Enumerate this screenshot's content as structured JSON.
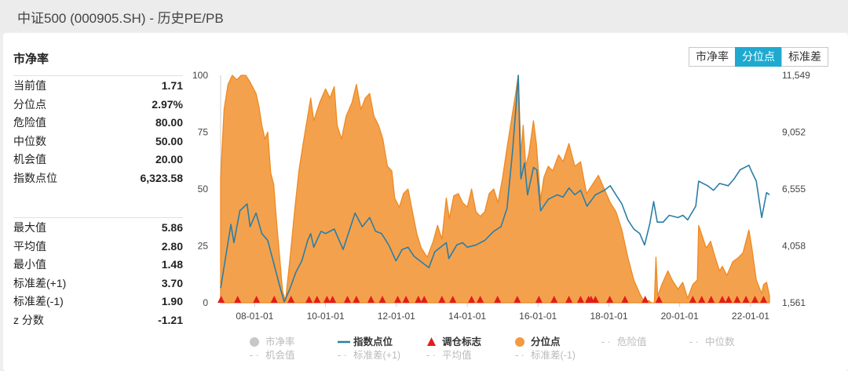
{
  "window_title": "中证500 (000905.SH) - 历史PE/PB",
  "card_title": "市净率",
  "buttons": [
    {
      "label": "市净率",
      "active": false
    },
    {
      "label": "分位点",
      "active": true
    },
    {
      "label": "标准差",
      "active": false
    }
  ],
  "stats_top": [
    {
      "label": "当前值",
      "value": "1.71"
    },
    {
      "label": "分位点",
      "value": "2.97%"
    },
    {
      "label": "危险值",
      "value": "80.00"
    },
    {
      "label": "中位数",
      "value": "50.00"
    },
    {
      "label": "机会值",
      "value": "20.00"
    },
    {
      "label": "指数点位",
      "value": "6,323.58"
    }
  ],
  "stats_bottom": [
    {
      "label": "最大值",
      "value": "5.86"
    },
    {
      "label": "平均值",
      "value": "2.80"
    },
    {
      "label": "最小值",
      "value": "1.48"
    },
    {
      "label": "标准差(+1)",
      "value": "3.70"
    },
    {
      "label": "标准差(-1)",
      "value": "1.90"
    },
    {
      "label": "z 分数",
      "value": "-1.21"
    }
  ],
  "colors": {
    "percentile_fill": "#f39a3f",
    "percentile_line": "#ee8a22",
    "index_line": "#2b7ea5",
    "signal": "#e31c1c",
    "muted": "#c8c8c8"
  },
  "chart_data": {
    "type": "area",
    "left_axis": {
      "ticks": [
        "0",
        "25",
        "50",
        "75",
        "100"
      ],
      "ylim": [
        0,
        100
      ]
    },
    "right_axis": {
      "ticks": [
        "1,561",
        "4,058",
        "6,555",
        "9,052",
        "11,549"
      ],
      "ylim": [
        1561,
        11549
      ]
    },
    "x_ticks": [
      "08-01-01",
      "10-01-01",
      "12-01-01",
      "14-01-01",
      "16-01-01",
      "18-01-01",
      "20-01-01",
      "22-01-01"
    ],
    "x_range": [
      "2007-01-15",
      "2022-07-15"
    ],
    "series": [
      {
        "name": "分位点",
        "axis": "left",
        "points": [
          [
            "2007-01-15",
            55
          ],
          [
            "2007-02-20",
            85
          ],
          [
            "2007-04-01",
            96
          ],
          [
            "2007-05-15",
            100
          ],
          [
            "2007-07-01",
            98
          ],
          [
            "2007-08-15",
            100
          ],
          [
            "2007-10-01",
            100
          ],
          [
            "2007-11-15",
            97
          ],
          [
            "2008-01-15",
            92
          ],
          [
            "2008-02-15",
            86
          ],
          [
            "2008-03-15",
            78
          ],
          [
            "2008-04-15",
            72
          ],
          [
            "2008-05-15",
            75
          ],
          [
            "2008-06-15",
            57
          ],
          [
            "2008-07-15",
            52
          ],
          [
            "2008-08-15",
            35
          ],
          [
            "2008-09-15",
            20
          ],
          [
            "2008-10-15",
            5
          ],
          [
            "2008-11-15",
            1
          ],
          [
            "2009-01-01",
            20
          ],
          [
            "2009-02-15",
            40
          ],
          [
            "2009-04-01",
            58
          ],
          [
            "2009-05-15",
            70
          ],
          [
            "2009-07-01",
            82
          ],
          [
            "2009-08-01",
            90
          ],
          [
            "2009-09-01",
            80
          ],
          [
            "2009-11-01",
            88
          ],
          [
            "2010-01-01",
            94
          ],
          [
            "2010-02-15",
            90
          ],
          [
            "2010-04-01",
            95
          ],
          [
            "2010-05-01",
            78
          ],
          [
            "2010-06-15",
            72
          ],
          [
            "2010-08-01",
            82
          ],
          [
            "2010-10-01",
            88
          ],
          [
            "2010-11-15",
            96
          ],
          [
            "2011-01-01",
            85
          ],
          [
            "2011-02-15",
            90
          ],
          [
            "2011-04-01",
            92
          ],
          [
            "2011-05-15",
            82
          ],
          [
            "2011-07-01",
            78
          ],
          [
            "2011-08-15",
            72
          ],
          [
            "2011-10-01",
            60
          ],
          [
            "2011-11-15",
            58
          ],
          [
            "2011-12-15",
            46
          ],
          [
            "2012-02-01",
            42
          ],
          [
            "2012-03-15",
            48
          ],
          [
            "2012-05-01",
            50
          ],
          [
            "2012-06-15",
            40
          ],
          [
            "2012-08-01",
            30
          ],
          [
            "2012-09-15",
            24
          ],
          [
            "2012-11-15",
            20
          ],
          [
            "2013-01-15",
            27
          ],
          [
            "2013-03-01",
            34
          ],
          [
            "2013-04-15",
            28
          ],
          [
            "2013-05-30",
            46
          ],
          [
            "2013-07-01",
            37
          ],
          [
            "2013-08-15",
            47
          ],
          [
            "2013-10-01",
            48
          ],
          [
            "2013-11-15",
            44
          ],
          [
            "2014-01-01",
            42
          ],
          [
            "2014-02-15",
            50
          ],
          [
            "2014-04-01",
            40
          ],
          [
            "2014-05-15",
            38
          ],
          [
            "2014-07-01",
            40
          ],
          [
            "2014-08-15",
            48
          ],
          [
            "2014-10-01",
            50
          ],
          [
            "2014-11-15",
            44
          ],
          [
            "2015-01-01",
            55
          ],
          [
            "2015-02-15",
            68
          ],
          [
            "2015-04-01",
            80
          ],
          [
            "2015-05-15",
            92
          ],
          [
            "2015-06-12",
            100
          ],
          [
            "2015-07-08",
            65
          ],
          [
            "2015-08-01",
            78
          ],
          [
            "2015-08-28",
            60
          ],
          [
            "2015-10-01",
            66
          ],
          [
            "2015-11-15",
            80
          ],
          [
            "2015-12-15",
            70
          ],
          [
            "2016-01-28",
            45
          ],
          [
            "2016-03-01",
            55
          ],
          [
            "2016-04-15",
            60
          ],
          [
            "2016-06-01",
            58
          ],
          [
            "2016-08-01",
            65
          ],
          [
            "2016-09-15",
            62
          ],
          [
            "2016-11-15",
            70
          ],
          [
            "2017-01-15",
            60
          ],
          [
            "2017-03-15",
            62
          ],
          [
            "2017-05-15",
            48
          ],
          [
            "2017-07-15",
            52
          ],
          [
            "2017-09-15",
            56
          ],
          [
            "2017-11-15",
            50
          ],
          [
            "2018-01-15",
            44
          ],
          [
            "2018-03-15",
            40
          ],
          [
            "2018-05-15",
            32
          ],
          [
            "2018-07-15",
            20
          ],
          [
            "2018-09-15",
            10
          ],
          [
            "2018-11-15",
            4
          ],
          [
            "2019-01-04",
            0
          ],
          [
            "2019-02-15",
            1
          ],
          [
            "2019-03-15",
            0
          ],
          [
            "2019-04-15",
            0
          ],
          [
            "2019-05-01",
            20
          ],
          [
            "2019-05-20",
            3
          ],
          [
            "2019-07-01",
            8
          ],
          [
            "2019-09-01",
            14
          ],
          [
            "2019-10-15",
            10
          ],
          [
            "2019-12-15",
            6
          ],
          [
            "2020-02-01",
            9
          ],
          [
            "2020-03-23",
            2
          ],
          [
            "2020-05-15",
            8
          ],
          [
            "2020-07-01",
            10
          ],
          [
            "2020-07-15",
            34
          ],
          [
            "2020-08-15",
            30
          ],
          [
            "2020-10-01",
            24
          ],
          [
            "2020-11-15",
            27
          ],
          [
            "2021-01-01",
            20
          ],
          [
            "2021-02-15",
            14
          ],
          [
            "2021-03-15",
            16
          ],
          [
            "2021-05-01",
            12
          ],
          [
            "2021-07-01",
            18
          ],
          [
            "2021-09-01",
            20
          ],
          [
            "2021-10-15",
            22
          ],
          [
            "2021-12-15",
            32
          ],
          [
            "2022-01-15",
            24
          ],
          [
            "2022-03-01",
            10
          ],
          [
            "2022-04-26",
            4
          ],
          [
            "2022-05-15",
            8
          ],
          [
            "2022-06-15",
            9
          ],
          [
            "2022-07-15",
            3
          ]
        ]
      },
      {
        "name": "指数点位",
        "axis": "right",
        "points": [
          [
            "2007-01-15",
            2200
          ],
          [
            "2007-03-01",
            3400
          ],
          [
            "2007-05-01",
            5000
          ],
          [
            "2007-06-01",
            4200
          ],
          [
            "2007-08-01",
            5600
          ],
          [
            "2007-10-15",
            5900
          ],
          [
            "2007-11-15",
            4900
          ],
          [
            "2008-01-15",
            5500
          ],
          [
            "2008-03-15",
            4600
          ],
          [
            "2008-05-15",
            4300
          ],
          [
            "2008-07-15",
            3300
          ],
          [
            "2008-09-15",
            2300
          ],
          [
            "2008-11-01",
            1600
          ],
          [
            "2009-01-01",
            2200
          ],
          [
            "2009-03-01",
            2900
          ],
          [
            "2009-05-01",
            3400
          ],
          [
            "2009-07-01",
            4300
          ],
          [
            "2009-08-01",
            4600
          ],
          [
            "2009-09-01",
            4000
          ],
          [
            "2009-11-15",
            4700
          ],
          [
            "2010-01-01",
            4600
          ],
          [
            "2010-04-01",
            4800
          ],
          [
            "2010-07-01",
            3900
          ],
          [
            "2010-09-01",
            4700
          ],
          [
            "2010-11-01",
            5500
          ],
          [
            "2011-01-15",
            4900
          ],
          [
            "2011-04-01",
            5300
          ],
          [
            "2011-06-01",
            4700
          ],
          [
            "2011-08-01",
            4600
          ],
          [
            "2011-10-15",
            4100
          ],
          [
            "2011-12-28",
            3400
          ],
          [
            "2012-03-01",
            3900
          ],
          [
            "2012-05-01",
            4000
          ],
          [
            "2012-07-01",
            3600
          ],
          [
            "2012-09-01",
            3400
          ],
          [
            "2012-12-01",
            3100
          ],
          [
            "2013-02-01",
            3800
          ],
          [
            "2013-05-30",
            4200
          ],
          [
            "2013-06-25",
            3500
          ],
          [
            "2013-09-15",
            4100
          ],
          [
            "2013-11-15",
            4200
          ],
          [
            "2014-01-01",
            4000
          ],
          [
            "2014-04-01",
            4100
          ],
          [
            "2014-07-01",
            4300
          ],
          [
            "2014-10-01",
            4700
          ],
          [
            "2014-12-15",
            4900
          ],
          [
            "2015-02-15",
            5700
          ],
          [
            "2015-04-15",
            8300
          ],
          [
            "2015-06-12",
            11549
          ],
          [
            "2015-07-08",
            7000
          ],
          [
            "2015-08-15",
            7700
          ],
          [
            "2015-09-15",
            6300
          ],
          [
            "2015-11-15",
            7500
          ],
          [
            "2015-12-20",
            7400
          ],
          [
            "2016-01-28",
            5600
          ],
          [
            "2016-04-15",
            6100
          ],
          [
            "2016-07-15",
            6300
          ],
          [
            "2016-09-15",
            6200
          ],
          [
            "2016-11-15",
            6600
          ],
          [
            "2017-01-15",
            6300
          ],
          [
            "2017-03-15",
            6500
          ],
          [
            "2017-05-20",
            5800
          ],
          [
            "2017-08-15",
            6300
          ],
          [
            "2017-11-15",
            6500
          ],
          [
            "2018-01-15",
            6700
          ],
          [
            "2018-03-15",
            6300
          ],
          [
            "2018-05-15",
            5900
          ],
          [
            "2018-07-15",
            5200
          ],
          [
            "2018-09-15",
            4800
          ],
          [
            "2018-11-15",
            4600
          ],
          [
            "2019-01-04",
            4100
          ],
          [
            "2019-02-25",
            5000
          ],
          [
            "2019-04-08",
            6000
          ],
          [
            "2019-05-15",
            5100
          ],
          [
            "2019-07-15",
            5100
          ],
          [
            "2019-09-15",
            5400
          ],
          [
            "2019-12-15",
            5300
          ],
          [
            "2020-02-03",
            5400
          ],
          [
            "2020-03-23",
            5200
          ],
          [
            "2020-06-15",
            5800
          ],
          [
            "2020-07-15",
            6900
          ],
          [
            "2020-10-15",
            6700
          ],
          [
            "2020-12-15",
            6500
          ],
          [
            "2021-02-15",
            6800
          ],
          [
            "2021-05-15",
            6700
          ],
          [
            "2021-07-15",
            7000
          ],
          [
            "2021-09-15",
            7400
          ],
          [
            "2021-12-15",
            7600
          ],
          [
            "2022-01-15",
            7300
          ],
          [
            "2022-03-01",
            6900
          ],
          [
            "2022-04-26",
            5300
          ],
          [
            "2022-06-15",
            6400
          ],
          [
            "2022-07-15",
            6300
          ]
        ]
      }
    ],
    "signals": {
      "name": "调仓标志",
      "y": 0,
      "dates": [
        "2007-01-20",
        "2007-07-10",
        "2008-01-20",
        "2008-07-20",
        "2009-01-10",
        "2009-07-15",
        "2009-10-05",
        "2010-01-15",
        "2010-03-15",
        "2010-08-15",
        "2010-11-15",
        "2011-04-15",
        "2011-08-10",
        "2012-01-15",
        "2012-04-10",
        "2012-08-15",
        "2012-10-15",
        "2013-04-15",
        "2013-08-05",
        "2014-02-15",
        "2014-05-15",
        "2014-11-10",
        "2015-06-01",
        "2016-01-10",
        "2016-06-15",
        "2016-11-15",
        "2017-03-15",
        "2017-06-05",
        "2017-07-01",
        "2017-08-15",
        "2018-01-10",
        "2018-06-15",
        "2019-01-10",
        "2019-06-01",
        "2020-05-15",
        "2020-08-15",
        "2020-11-20",
        "2021-03-15",
        "2021-05-20",
        "2021-08-15",
        "2021-11-15",
        "2022-02-15",
        "2022-05-15"
      ]
    },
    "legend": {
      "row1": [
        {
          "label": "市净率",
          "symbol": "circle",
          "color": "#c8c8c8",
          "active": false
        },
        {
          "label": "指数点位",
          "symbol": "line",
          "color": "#2b7ea5",
          "active": true
        },
        {
          "label": "调仓标志",
          "symbol": "triangle",
          "color": "#e31c1c",
          "active": true
        },
        {
          "label": "分位点",
          "symbol": "circle",
          "color": "#f39a3f",
          "active": true
        },
        {
          "label": "危险值",
          "symbol": "dash",
          "color": "#c8c8c8",
          "active": false
        },
        {
          "label": "中位数",
          "symbol": "dash",
          "color": "#c8c8c8",
          "active": false
        }
      ],
      "row2": [
        {
          "label": "机会值",
          "symbol": "dash",
          "color": "#c8c8c8",
          "active": false
        },
        {
          "label": "标准差(+1)",
          "symbol": "dash",
          "color": "#c8c8c8",
          "active": false
        },
        {
          "label": "平均值",
          "symbol": "dash",
          "color": "#c8c8c8",
          "active": false
        },
        {
          "label": "标准差(-1)",
          "symbol": "dash",
          "color": "#c8c8c8",
          "active": false
        }
      ]
    }
  }
}
